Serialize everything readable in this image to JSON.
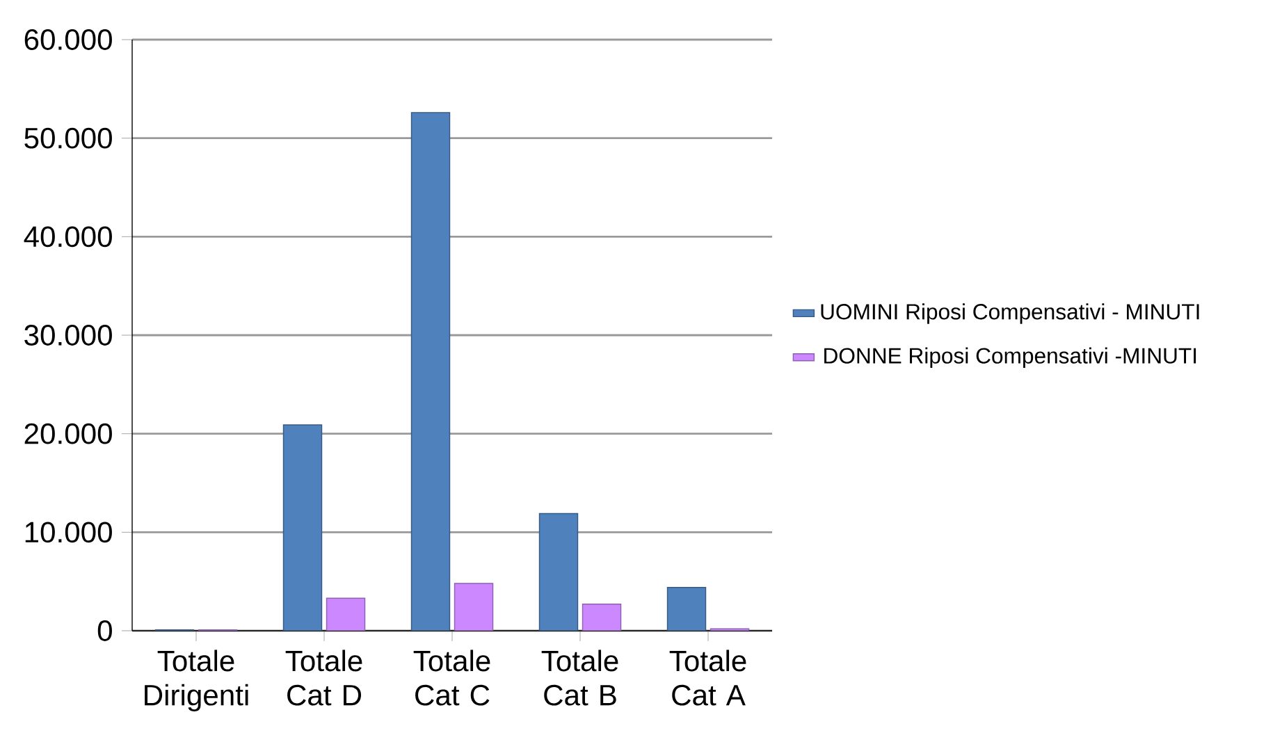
{
  "chart_data": {
    "type": "bar",
    "categories": [
      "Totale Dirigenti",
      "Totale Cat D",
      "Totale Cat C",
      "Totale Cat B",
      "Totale Cat A"
    ],
    "series": [
      {
        "name": "UOMINI Riposi Compensativi - MINUTI",
        "color": "#4f81bd",
        "values": [
          100,
          20900,
          52600,
          11900,
          4400
        ]
      },
      {
        "name": "DONNE Riposi Compensativi -MINUTI",
        "color": "#cc88ff",
        "values": [
          100,
          3300,
          4800,
          2700,
          200
        ]
      }
    ],
    "ylim": [
      0,
      60000
    ],
    "yticks": [
      {
        "value": 0,
        "label": "0"
      },
      {
        "value": 10000,
        "label": "10.000"
      },
      {
        "value": 20000,
        "label": "20.000"
      },
      {
        "value": 30000,
        "label": "30.000"
      },
      {
        "value": 40000,
        "label": "40.000"
      },
      {
        "value": 50000,
        "label": "50.000"
      },
      {
        "value": 60000,
        "label": "60.000"
      }
    ],
    "grid": "y",
    "legend": "right"
  }
}
